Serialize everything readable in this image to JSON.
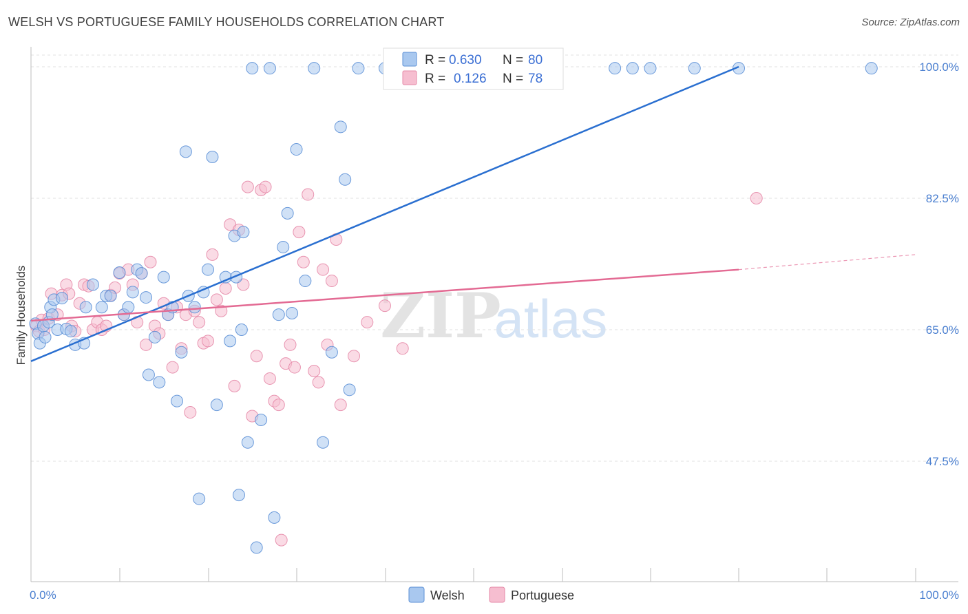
{
  "title": "WELSH VS PORTUGUESE FAMILY HOUSEHOLDS CORRELATION CHART",
  "source": "Source: ZipAtlas.com",
  "watermark": {
    "zip": "ZIP",
    "atlas": "atlas"
  },
  "colors": {
    "welsh_fill": "#a9c8ef",
    "welsh_stroke": "#5b8fd6",
    "welsh_line": "#2a6fd0",
    "portuguese_fill": "#f6bed0",
    "portuguese_stroke": "#e58aa8",
    "portuguese_line": "#e36a93",
    "tick_text": "#4a7fd0"
  },
  "legend": {
    "rows": [
      {
        "r_label": "R =",
        "r_value": "0.630",
        "n_label": "N =",
        "n_value": "80"
      },
      {
        "r_label": "R =",
        "r_value": "0.126",
        "n_label": "N =",
        "n_value": "78"
      }
    ]
  },
  "chart_data": {
    "type": "scatter",
    "title": "WELSH VS PORTUGUESE FAMILY HOUSEHOLDS CORRELATION CHART",
    "xlabel": "",
    "ylabel": "Family Households",
    "xlim": [
      0,
      100
    ],
    "ylim": [
      32,
      102
    ],
    "x_tick_labels": [
      "0.0%",
      "100.0%"
    ],
    "y_ticks": [
      47.5,
      65.0,
      82.5,
      100.0
    ],
    "y_tick_labels": [
      "47.5%",
      "65.0%",
      "82.5%",
      "100.0%"
    ],
    "grid": "horizontal dashed",
    "legend_position": "top-center",
    "series": [
      {
        "name": "Welsh",
        "r": 0.63,
        "n": 80,
        "trend": {
          "x": [
            0,
            80
          ],
          "y": [
            60.8,
            100.0
          ],
          "dashed_extension": false
        },
        "points": [
          [
            0.5,
            65.8
          ],
          [
            0.8,
            64.5
          ],
          [
            1.0,
            63.2
          ],
          [
            1.4,
            65.5
          ],
          [
            1.6,
            64.0
          ],
          [
            2.0,
            66.0
          ],
          [
            2.2,
            68.0
          ],
          [
            2.4,
            67.0
          ],
          [
            2.6,
            69.0
          ],
          [
            3.0,
            65.0
          ],
          [
            3.5,
            69.2
          ],
          [
            4.0,
            65.1
          ],
          [
            4.5,
            64.8
          ],
          [
            5.0,
            63.0
          ],
          [
            6.0,
            63.2
          ],
          [
            6.2,
            68.0
          ],
          [
            7.0,
            71.0
          ],
          [
            8.0,
            68.0
          ],
          [
            8.5,
            69.5
          ],
          [
            9.0,
            69.5
          ],
          [
            10.0,
            72.6
          ],
          [
            10.5,
            67.0
          ],
          [
            11.0,
            68.0
          ],
          [
            11.5,
            70.0
          ],
          [
            12.0,
            73.0
          ],
          [
            12.5,
            72.5
          ],
          [
            13.0,
            69.3
          ],
          [
            13.3,
            59.0
          ],
          [
            14.0,
            64.0
          ],
          [
            14.5,
            58.0
          ],
          [
            15.0,
            72.0
          ],
          [
            15.5,
            67.0
          ],
          [
            16.0,
            68.0
          ],
          [
            16.5,
            55.5
          ],
          [
            17.0,
            62.0
          ],
          [
            17.5,
            88.7
          ],
          [
            17.8,
            69.5
          ],
          [
            18.5,
            68.0
          ],
          [
            19.0,
            42.5
          ],
          [
            19.5,
            70.0
          ],
          [
            20.0,
            73.0
          ],
          [
            20.5,
            88.0
          ],
          [
            21.0,
            55.0
          ],
          [
            22.0,
            72.0
          ],
          [
            22.5,
            63.5
          ],
          [
            23.0,
            77.5
          ],
          [
            23.2,
            72.0
          ],
          [
            23.5,
            43.0
          ],
          [
            23.8,
            65.0
          ],
          [
            24.0,
            78.0
          ],
          [
            24.5,
            50.0
          ],
          [
            25.0,
            99.8
          ],
          [
            25.5,
            36.0
          ],
          [
            26.0,
            53.0
          ],
          [
            27.0,
            99.8
          ],
          [
            27.5,
            40.0
          ],
          [
            28.0,
            67.0
          ],
          [
            28.5,
            76.0
          ],
          [
            29.0,
            80.5
          ],
          [
            29.5,
            67.2
          ],
          [
            30.0,
            89.0
          ],
          [
            31.0,
            71.5
          ],
          [
            32.0,
            99.8
          ],
          [
            33.0,
            50.0
          ],
          [
            34.0,
            62.0
          ],
          [
            35.0,
            92.0
          ],
          [
            35.5,
            85.0
          ],
          [
            36.0,
            57.0
          ],
          [
            37.0,
            99.8
          ],
          [
            40.0,
            99.8
          ],
          [
            43.0,
            99.8
          ],
          [
            44.0,
            99.8
          ],
          [
            54.0,
            99.8
          ],
          [
            57.0,
            99.8
          ],
          [
            66.0,
            99.8
          ],
          [
            68.0,
            99.8
          ],
          [
            70.0,
            99.8
          ],
          [
            75.0,
            99.8
          ],
          [
            80.0,
            99.8
          ],
          [
            95.0,
            99.8
          ]
        ]
      },
      {
        "name": "Portuguese",
        "r": 0.126,
        "n": 78,
        "trend": {
          "x": [
            0,
            80
          ],
          "y": [
            66.2,
            73.0
          ],
          "dashed_extension": true,
          "extension_to_x": 100,
          "extension_to_y": 75.0
        },
        "points": [
          [
            0.6,
            65.5
          ],
          [
            0.9,
            64.8
          ],
          [
            1.2,
            66.3
          ],
          [
            1.5,
            65.0
          ],
          [
            2.0,
            66.5
          ],
          [
            2.3,
            69.8
          ],
          [
            3.0,
            67.0
          ],
          [
            3.5,
            69.6
          ],
          [
            4.0,
            71.0
          ],
          [
            4.3,
            69.8
          ],
          [
            4.6,
            65.5
          ],
          [
            5.0,
            64.8
          ],
          [
            5.5,
            68.5
          ],
          [
            6.0,
            71.0
          ],
          [
            6.5,
            70.8
          ],
          [
            7.0,
            65.0
          ],
          [
            7.5,
            66.0
          ],
          [
            8.0,
            65.0
          ],
          [
            8.5,
            65.5
          ],
          [
            9.0,
            69.6
          ],
          [
            9.5,
            70.6
          ],
          [
            10.0,
            72.5
          ],
          [
            10.5,
            67.0
          ],
          [
            11.0,
            73.0
          ],
          [
            11.5,
            71.0
          ],
          [
            12.0,
            66.0
          ],
          [
            12.5,
            72.5
          ],
          [
            13.0,
            63.0
          ],
          [
            13.5,
            74.0
          ],
          [
            14.0,
            65.5
          ],
          [
            14.5,
            64.5
          ],
          [
            15.0,
            68.5
          ],
          [
            15.5,
            67.0
          ],
          [
            16.0,
            60.0
          ],
          [
            16.5,
            68.0
          ],
          [
            17.0,
            62.5
          ],
          [
            17.5,
            67.0
          ],
          [
            18.0,
            54.0
          ],
          [
            18.5,
            67.5
          ],
          [
            19.0,
            66.0
          ],
          [
            19.5,
            63.2
          ],
          [
            20.0,
            63.5
          ],
          [
            20.5,
            75.0
          ],
          [
            21.0,
            69.0
          ],
          [
            21.5,
            67.5
          ],
          [
            22.0,
            70.5
          ],
          [
            22.5,
            79.0
          ],
          [
            23.0,
            57.5
          ],
          [
            23.5,
            78.3
          ],
          [
            24.0,
            71.0
          ],
          [
            24.5,
            84.0
          ],
          [
            25.0,
            53.5
          ],
          [
            25.5,
            61.5
          ],
          [
            26.0,
            83.6
          ],
          [
            26.5,
            84.0
          ],
          [
            27.0,
            58.5
          ],
          [
            27.5,
            55.5
          ],
          [
            28.0,
            55.0
          ],
          [
            28.3,
            37.0
          ],
          [
            28.8,
            60.5
          ],
          [
            29.3,
            63.0
          ],
          [
            29.8,
            60.0
          ],
          [
            30.3,
            78.0
          ],
          [
            30.8,
            74.0
          ],
          [
            31.3,
            83.0
          ],
          [
            32.0,
            59.5
          ],
          [
            32.5,
            58.0
          ],
          [
            33.0,
            73.0
          ],
          [
            33.5,
            63.0
          ],
          [
            34.0,
            71.5
          ],
          [
            34.5,
            77.0
          ],
          [
            35.0,
            55.0
          ],
          [
            36.5,
            61.5
          ],
          [
            38.0,
            66.0
          ],
          [
            40.0,
            68.2
          ],
          [
            42.0,
            62.5
          ],
          [
            48.0,
            99.8
          ],
          [
            82.0,
            82.5
          ]
        ]
      }
    ]
  },
  "bottom_legend": {
    "welsh": "Welsh",
    "portuguese": "Portuguese"
  }
}
